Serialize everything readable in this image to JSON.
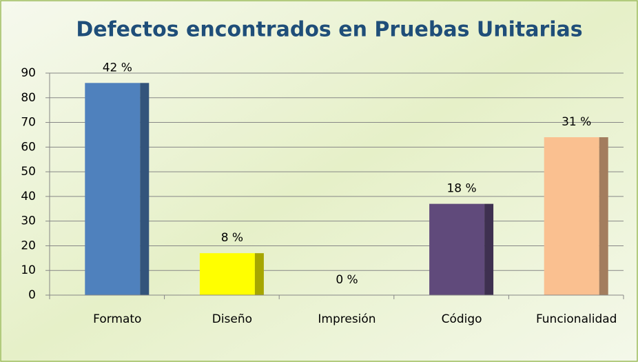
{
  "chart_data": {
    "type": "bar",
    "title": "Defectos encontrados en Pruebas Unitarias",
    "categories": [
      "Formato",
      "Diseño",
      "Impresión",
      "Código",
      "Funcionalidad"
    ],
    "values": [
      86,
      17,
      0,
      37,
      64
    ],
    "colors": [
      "#4f81bd",
      "#ffff00",
      "#9bbb59",
      "#604a7b",
      "#fac090"
    ],
    "data_labels": {
      "values": [
        42,
        8,
        0,
        18,
        31
      ],
      "value_labels": [
        "42 %",
        "8 %",
        "0 %",
        "18 %",
        "31 %"
      ]
    },
    "ylim": [
      0,
      90
    ],
    "yticks": [
      0,
      10,
      20,
      30,
      40,
      50,
      60,
      70,
      80,
      90
    ],
    "grid": true
  }
}
